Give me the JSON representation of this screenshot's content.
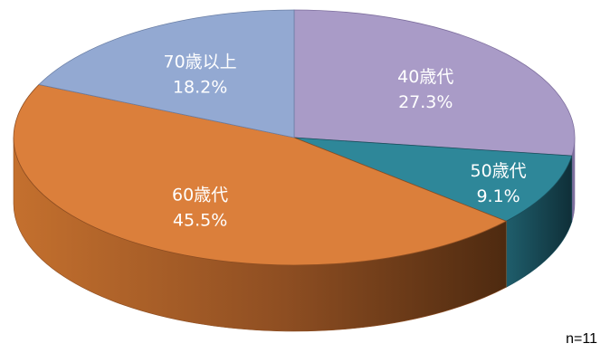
{
  "chart_data": {
    "type": "pie",
    "style": "3d",
    "start": "12 o'clock, clockwise",
    "slices": [
      {
        "label": "40歳代",
        "percent": 27.3,
        "value_text": "27.3%",
        "color": "#A99BC7",
        "side": "#7E6F9E"
      },
      {
        "label": "50歳代",
        "percent": 9.1,
        "value_text": "9.1%",
        "color": "#2E8799",
        "side": "#1A4F5C"
      },
      {
        "label": "60歳代",
        "percent": 45.5,
        "value_text": "45.5%",
        "color": "#DB7F3B",
        "side": "#8E4E22"
      },
      {
        "label": "70歳以上",
        "percent": 18.2,
        "value_text": "18.2%",
        "color": "#93A9D2",
        "side": "#6B7FA5"
      }
    ]
  },
  "note": "n=11"
}
